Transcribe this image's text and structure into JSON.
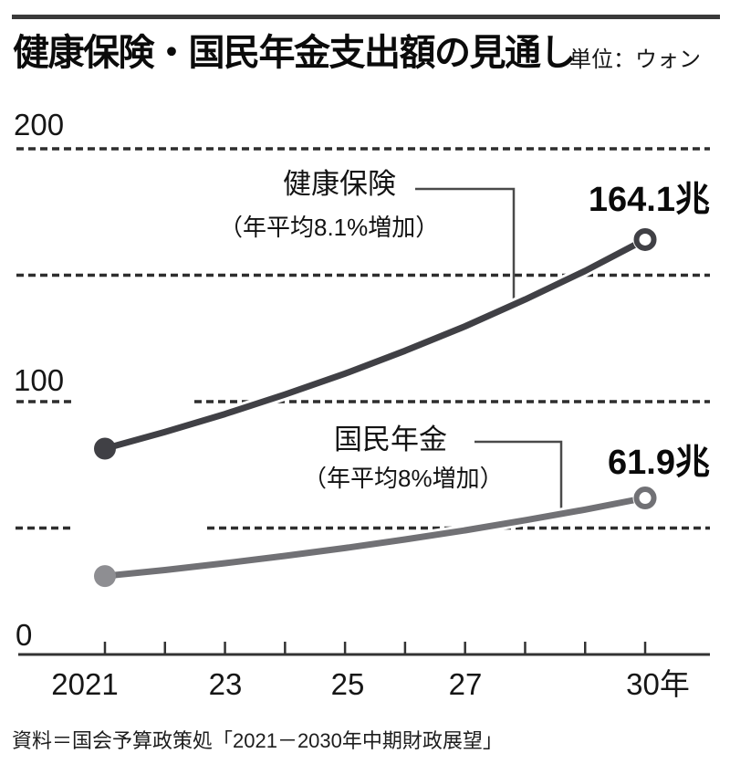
{
  "header": {
    "title": "健康保険・国民年金支出額の見通し",
    "unit": "単位：ウォン"
  },
  "chart_data": {
    "type": "line",
    "title": "健康保険・国民年金支出額の見通し",
    "unit": "単位：ウォン",
    "x": [
      2021,
      2022,
      2023,
      2024,
      2025,
      2026,
      2027,
      2028,
      2029,
      2030
    ],
    "series": [
      {
        "name": "健康保険",
        "note": "（年平均8.1%増加）",
        "end_label": "164.1兆",
        "end_value": 164.1,
        "color": "#404045",
        "start_marker_color": "#404045",
        "values": [
          81.4,
          88.0,
          95.1,
          102.8,
          111.1,
          120.1,
          129.8,
          140.4,
          151.7,
          164.1
        ]
      },
      {
        "name": "国民年金",
        "note": "（年平均8%増加）",
        "end_label": "61.9兆",
        "end_value": 61.9,
        "color": "#717175",
        "start_marker_color": "#8e8e92",
        "values": [
          31.0,
          33.4,
          36.1,
          39.0,
          42.1,
          45.5,
          49.1,
          53.1,
          57.3,
          61.9
        ]
      }
    ],
    "ylim": [
      0,
      215
    ],
    "gridline_values": [
      200,
      150,
      100,
      50
    ],
    "yticks": [
      {
        "value": 200,
        "label": "200"
      },
      {
        "value": 100,
        "label": "100"
      },
      {
        "value": 0,
        "label": "0"
      }
    ],
    "xticks": [
      {
        "year": 2021,
        "label": "2021"
      },
      {
        "year": 2023,
        "label": "23"
      },
      {
        "year": 2025,
        "label": "25"
      },
      {
        "year": 2027,
        "label": "27"
      },
      {
        "year": 2030,
        "label": "30年"
      }
    ],
    "grid": "horizontal-dashed",
    "legend_position": "inline-annotations"
  },
  "source": "資料＝国会予算政策処「2021－2030年中期財政展望」"
}
